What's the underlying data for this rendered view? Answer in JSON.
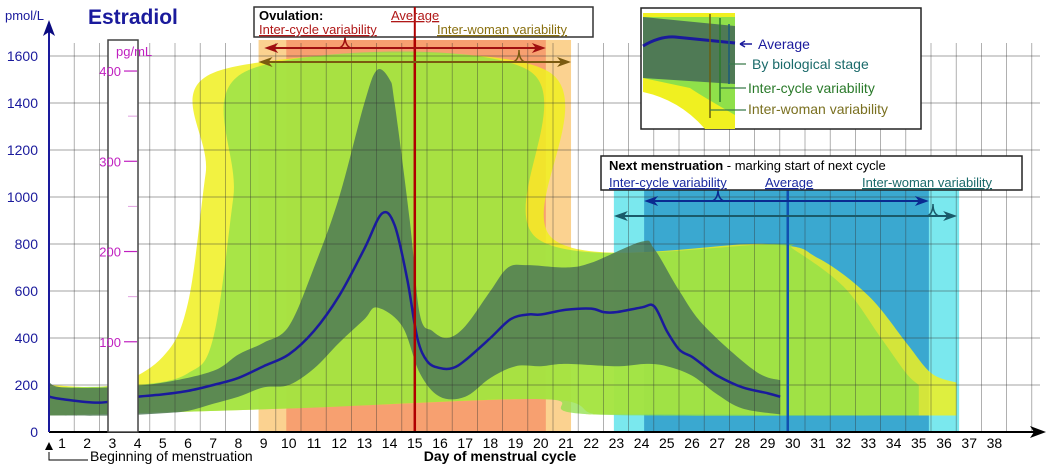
{
  "chart_data": {
    "type": "area",
    "title": "Estradiol",
    "ylabel": "pmol/L",
    "ylabel_secondary": "pg/mL",
    "xlabel": "Day of menstrual cycle",
    "ylim": [
      0,
      1600
    ],
    "yticks": [
      0,
      200,
      400,
      600,
      800,
      1000,
      1200,
      1400,
      1600
    ],
    "yticks_secondary": [
      100,
      200,
      300,
      400
    ],
    "xticks": [
      1,
      2,
      3,
      4,
      5,
      6,
      7,
      8,
      9,
      10,
      11,
      12,
      13,
      14,
      15,
      16,
      17,
      18,
      19,
      20,
      21,
      22,
      23,
      24,
      25,
      26,
      27,
      28,
      29,
      30,
      31,
      32,
      33,
      34,
      35,
      36,
      37,
      38
    ],
    "grid": true,
    "annotation_start": "Beginning of menstruation",
    "colors": {
      "average": "#1a1a9c",
      "stage": "#4f7a55",
      "inter_cycle": "#8fe04a",
      "inter_woman": "#f0f020",
      "ovulation_inter_cycle": "#f7a070",
      "ovulation_inter_woman": "#fbd290",
      "menstruation_inter_cycle": "#3aa8d0",
      "menstruation_inter_woman": "#7ae8ee",
      "ovulation_line": "#b00000",
      "menstruation_line": "#1050b0"
    },
    "average": [
      [
        0.5,
        150
      ],
      [
        1,
        140
      ],
      [
        2.5,
        125
      ],
      [
        4,
        150
      ],
      [
        5,
        160
      ],
      [
        6,
        175
      ],
      [
        7,
        200
      ],
      [
        8,
        230
      ],
      [
        9,
        280
      ],
      [
        10,
        330
      ],
      [
        11,
        430
      ],
      [
        12,
        580
      ],
      [
        13,
        780
      ],
      [
        13.7,
        930
      ],
      [
        14.2,
        880
      ],
      [
        14.7,
        650
      ],
      [
        15.1,
        400
      ],
      [
        15.5,
        300
      ],
      [
        16,
        272
      ],
      [
        16.5,
        272
      ],
      [
        17,
        305
      ],
      [
        18,
        400
      ],
      [
        18.8,
        480
      ],
      [
        19.5,
        500
      ],
      [
        20,
        500
      ],
      [
        21,
        520
      ],
      [
        22,
        525
      ],
      [
        22.5,
        510
      ],
      [
        23,
        510
      ],
      [
        24,
        530
      ],
      [
        24.5,
        535
      ],
      [
        25,
        430
      ],
      [
        25.5,
        350
      ],
      [
        26,
        320
      ],
      [
        26.5,
        280
      ],
      [
        27,
        240
      ],
      [
        28,
        190
      ],
      [
        29,
        165
      ],
      [
        29.5,
        150
      ]
    ],
    "by_biological_stage": {
      "upper": [
        [
          0.5,
          210
        ],
        [
          1,
          190
        ],
        [
          3,
          190
        ],
        [
          5,
          210
        ],
        [
          7,
          260
        ],
        [
          8,
          330
        ],
        [
          9,
          380
        ],
        [
          10,
          450
        ],
        [
          11,
          700
        ],
        [
          12,
          1000
        ],
        [
          13,
          1400
        ],
        [
          13.5,
          1540
        ],
        [
          14,
          1500
        ],
        [
          14.2,
          1400
        ],
        [
          14.8,
          900
        ],
        [
          15.2,
          500
        ],
        [
          15.7,
          430
        ],
        [
          16.3,
          400
        ],
        [
          17,
          450
        ],
        [
          18,
          600
        ],
        [
          18.7,
          700
        ],
        [
          19.5,
          710
        ],
        [
          21,
          700
        ],
        [
          22,
          720
        ],
        [
          24,
          810
        ],
        [
          24.5,
          780
        ],
        [
          25.5,
          600
        ],
        [
          26.5,
          450
        ],
        [
          28.5,
          260
        ],
        [
          29.5,
          220
        ]
      ],
      "lower": [
        [
          0.5,
          70
        ],
        [
          3,
          70
        ],
        [
          5,
          80
        ],
        [
          6,
          90
        ],
        [
          7,
          120
        ],
        [
          8,
          150
        ],
        [
          9,
          190
        ],
        [
          10,
          200
        ],
        [
          11,
          270
        ],
        [
          12,
          380
        ],
        [
          13,
          480
        ],
        [
          13.5,
          530
        ],
        [
          14.5,
          450
        ],
        [
          15.2,
          250
        ],
        [
          16,
          150
        ],
        [
          17,
          150
        ],
        [
          18,
          230
        ],
        [
          19,
          280
        ],
        [
          20,
          280
        ],
        [
          21,
          290
        ],
        [
          23,
          280
        ],
        [
          24.2,
          290
        ],
        [
          25,
          280
        ],
        [
          26,
          240
        ],
        [
          27,
          160
        ],
        [
          28,
          100
        ],
        [
          29.5,
          75
        ]
      ]
    },
    "inter_cycle_variability": {
      "upper": [
        [
          0.5,
          190
        ],
        [
          4,
          200
        ],
        [
          6,
          250
        ],
        [
          7,
          400
        ],
        [
          7.8,
          1000
        ],
        [
          8.4,
          1540
        ],
        [
          19.5,
          1540
        ],
        [
          19.9,
          820
        ],
        [
          29.5,
          800
        ],
        [
          30,
          780
        ],
        [
          32,
          620
        ],
        [
          33.5,
          400
        ],
        [
          34.5,
          250
        ],
        [
          35,
          200
        ]
      ],
      "lower": [
        [
          0.5,
          70
        ],
        [
          10,
          100
        ],
        [
          20,
          140
        ],
        [
          22,
          75
        ],
        [
          35,
          70
        ]
      ]
    },
    "inter_woman_variability": {
      "upper": [
        [
          0.5,
          200
        ],
        [
          3,
          200
        ],
        [
          5,
          320
        ],
        [
          6,
          550
        ],
        [
          6.7,
          1100
        ],
        [
          7.3,
          1540
        ],
        [
          20.2,
          1540
        ],
        [
          20.5,
          820
        ],
        [
          29,
          800
        ],
        [
          31,
          740
        ],
        [
          33,
          580
        ],
        [
          34.5,
          380
        ],
        [
          35.5,
          250
        ],
        [
          36.5,
          210
        ]
      ],
      "lower": [
        [
          0.5,
          70
        ],
        [
          10,
          100
        ],
        [
          20,
          140
        ],
        [
          22,
          80
        ],
        [
          23,
          75
        ],
        [
          36.5,
          70
        ]
      ]
    },
    "ovulation": {
      "title": "Ovulation:",
      "average_label": "Average",
      "inter_cycle_label": "Inter-cycle variability",
      "inter_woman_label": "Inter-woman variability",
      "average_day": 15,
      "inter_cycle_range": [
        9.9,
        20.2
      ],
      "inter_woman_range": [
        8.8,
        21.2
      ]
    },
    "next_menstruation": {
      "title": "Next menstruation",
      "subtitle": " - marking start of next cycle",
      "inter_cycle_label": "Inter-cycle variability",
      "average_label": "Average",
      "inter_woman_label": "Inter-woman variability",
      "average_day": 29.8,
      "inter_cycle_range": [
        24.1,
        35.4
      ],
      "inter_woman_range": [
        22.9,
        36.6
      ]
    },
    "legend": {
      "average": "Average",
      "stage": "By biological stage",
      "inter_cycle": "Inter-cycle variability",
      "inter_woman": "Inter-woman variability"
    }
  }
}
